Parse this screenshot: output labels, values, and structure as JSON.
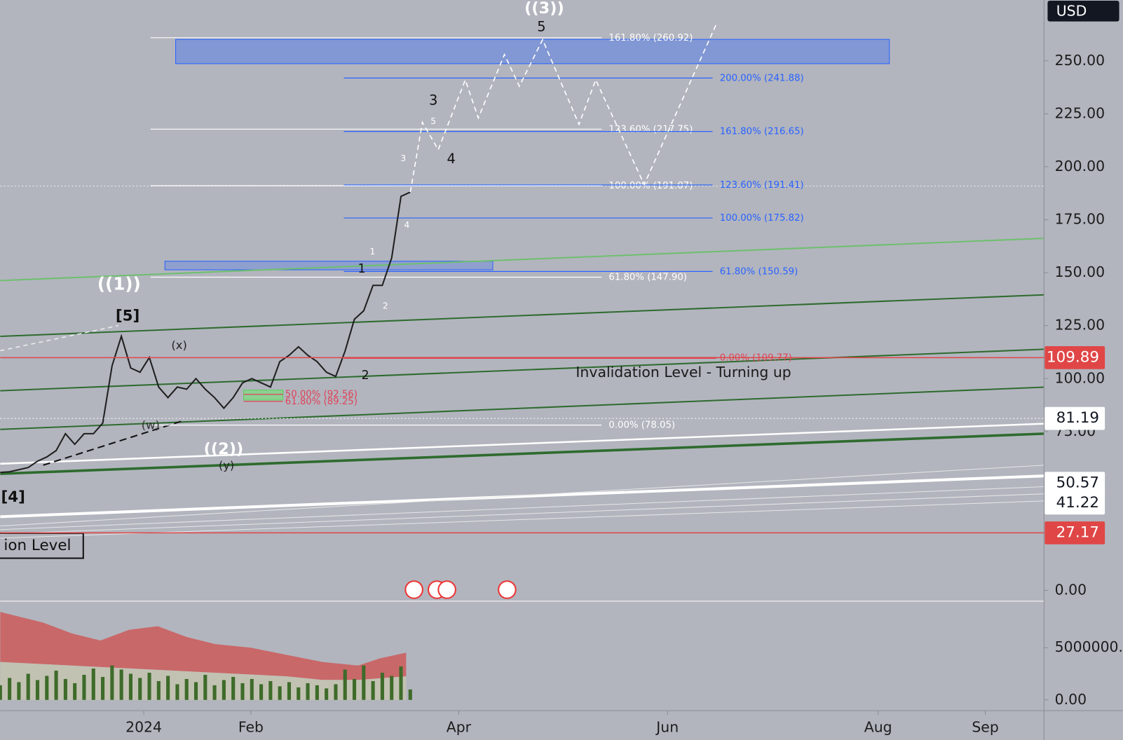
{
  "header": {
    "currency": "USD"
  },
  "chart_data": {
    "type": "line",
    "xlim": [
      0,
      112
    ],
    "xticks": [
      {
        "value": 15.4,
        "label": "2024"
      },
      {
        "value": 26.9,
        "label": "Feb"
      },
      {
        "value": 49.2,
        "label": "Apr"
      },
      {
        "value": 71.6,
        "label": "Jun"
      },
      {
        "value": 94.2,
        "label": "Aug"
      },
      {
        "value": 105.7,
        "label": "Sep"
      }
    ],
    "ylim": [
      -5.07,
      278.72
    ],
    "yticks": [
      {
        "value": 0,
        "label": "0.00"
      },
      {
        "value": 75,
        "label": "75.00"
      },
      {
        "value": 100,
        "label": "100.00"
      },
      {
        "value": 125,
        "label": "125.00"
      },
      {
        "value": 150,
        "label": "150.00"
      },
      {
        "value": 175,
        "label": "175.00"
      },
      {
        "value": 200,
        "label": "200.00"
      },
      {
        "value": 225,
        "label": "225.00"
      },
      {
        "value": 250,
        "label": "250.00"
      }
    ],
    "series": [
      {
        "color": "#1f1f1f",
        "x": [
          0,
          1,
          2,
          3,
          4,
          5,
          6,
          7,
          8,
          9,
          10,
          11,
          12,
          13,
          14,
          15,
          16,
          17,
          18,
          19,
          20,
          21,
          22,
          23,
          24,
          25,
          26,
          27,
          28,
          29,
          30,
          31,
          32,
          33,
          34,
          35,
          36,
          37,
          38,
          39,
          40,
          41,
          42,
          43,
          44
        ],
        "values": [
          55.7,
          56,
          57,
          58,
          61,
          63,
          66,
          74,
          69,
          74,
          74,
          79,
          106,
          120,
          105,
          103,
          110,
          96,
          91,
          96,
          95,
          100,
          95,
          91,
          86,
          91,
          98,
          100,
          98,
          96,
          108,
          111,
          115,
          111,
          108,
          103,
          101,
          113,
          128,
          132,
          144,
          144,
          157,
          186,
          188
        ]
      },
      {
        "color": "#ffffff",
        "dashed": true,
        "x": [
          44,
          45.3,
          47,
          49.9,
          51.3,
          54.1,
          55.7,
          58.2,
          62.1,
          63.9,
          69.1,
          76.8
        ],
        "values": [
          188,
          221,
          208,
          241,
          223,
          253,
          238,
          260,
          220,
          241,
          191.6,
          267
        ]
      }
    ],
    "price_labels": [
      {
        "value": 109.89,
        "color": "#e04646",
        "text_color": "#ffffff",
        "line": "solid"
      },
      {
        "value": 81.19,
        "color": "#ffffff",
        "text_color": "#131722",
        "line": "dotted"
      },
      {
        "value": 50.57,
        "color": "#ffffff",
        "text_color": "#131722",
        "line": "none"
      },
      {
        "value": 41.22,
        "color": "#ffffff",
        "text_color": "#131722",
        "line": "none"
      },
      {
        "value": 27.17,
        "color": "#e04646",
        "text_color": "#ffffff",
        "line": "solid"
      }
    ],
    "fib_white": {
      "color": "#ffffff",
      "levels": [
        {
          "label": "161.80% (260.92)",
          "value": 260.92
        },
        {
          "label": "123.60% (217.75)",
          "value": 217.75
        },
        {
          "label": "100.00% (191.07)",
          "value": 191.07
        },
        {
          "label": "61.80% (147.90)",
          "value": 147.9
        },
        {
          "label": "0.00% (78.05)",
          "value": 78.05
        }
      ]
    },
    "fib_blue": {
      "color": "#2962ff",
      "levels": [
        {
          "label": "200.00% (241.88)",
          "value": 241.88
        },
        {
          "label": "161.80% (216.65)",
          "value": 216.65
        },
        {
          "label": "123.60% (191.41)",
          "value": 191.41
        },
        {
          "label": "100.00% (175.82)",
          "value": 175.82
        },
        {
          "label": "61.80% (150.59)",
          "value": 150.59
        }
      ]
    },
    "fib_red": {
      "color": "#e0435a",
      "levels": [
        {
          "label": "50.00% (92.56)",
          "value": 92.56
        },
        {
          "label": "61.80% (89.25)",
          "value": 89.25
        },
        {
          "label": "0.00% (109.77)",
          "value": 109.77
        }
      ]
    },
    "volume": {
      "color": "#3e6b2a",
      "ylim": [
        -1030000,
        9450000
      ],
      "yticks": [
        {
          "value": 0,
          "label": "0.00"
        },
        {
          "value": 5000000,
          "label": "5000000."
        }
      ],
      "values": [
        1400000,
        2100000,
        1700000,
        2500000,
        1900000,
        2300000,
        2800000,
        2000000,
        1600000,
        2400000,
        3000000,
        2200000,
        3300000,
        2900000,
        2500000,
        2100000,
        2600000,
        1800000,
        2300000,
        1500000,
        2000000,
        1700000,
        2400000,
        1400000,
        1900000,
        2200000,
        1600000,
        2000000,
        1500000,
        1800000,
        1300000,
        1700000,
        1200000,
        1600000,
        1400000,
        1100000,
        1500000,
        2900000,
        2000000,
        3300000,
        1800000,
        2600000,
        2300000,
        3200000,
        1000000
      ]
    }
  },
  "annotations": {
    "waves": [
      "((3))",
      "5",
      "3",
      "4",
      "3",
      "5",
      "4",
      "1",
      "2",
      "1",
      "2",
      "((1))",
      "[5]",
      "(x)",
      "(w)",
      "((2))",
      "(y)",
      "[4]"
    ],
    "invalidation": "Invalidation Level - Turning up",
    "invalidation_box": "ion Level"
  }
}
